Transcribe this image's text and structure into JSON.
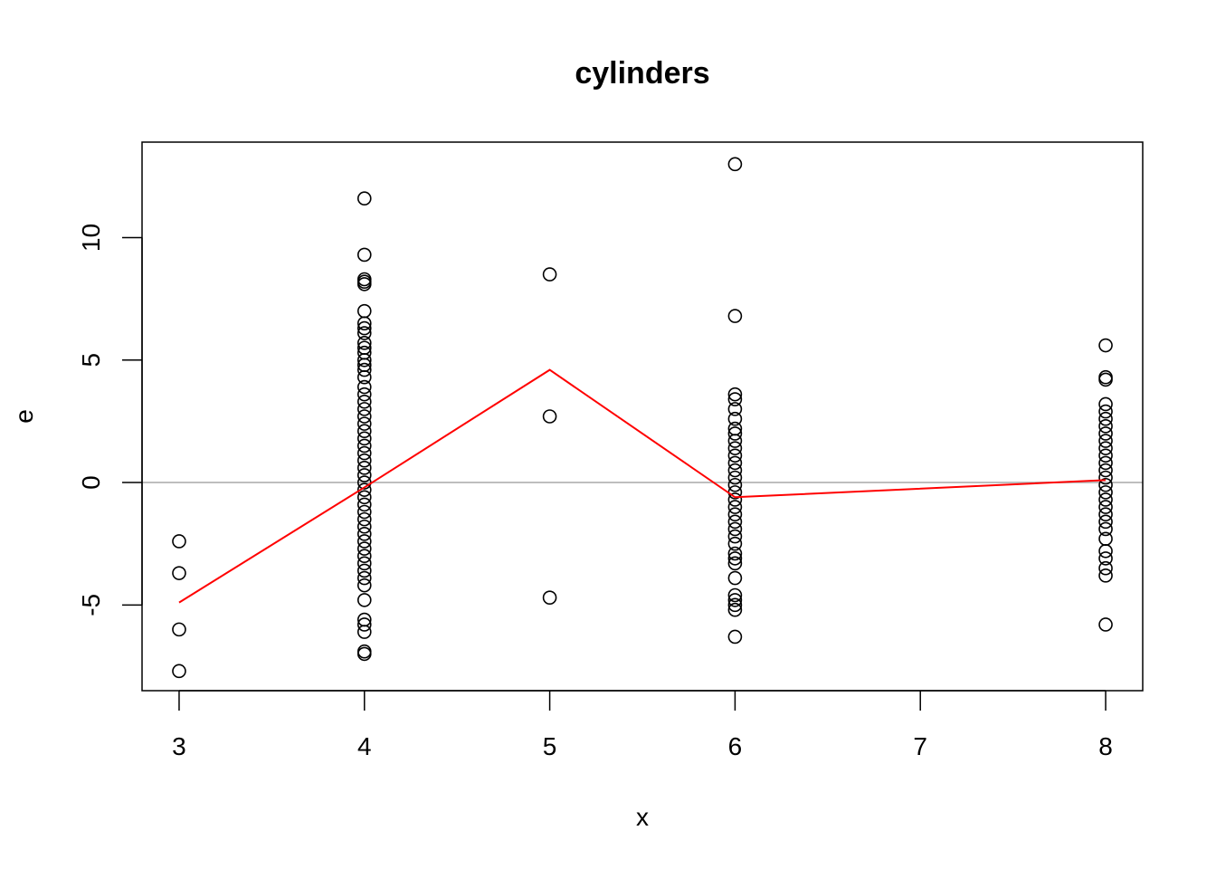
{
  "chart_data": {
    "type": "scatter",
    "title": "cylinders",
    "xlabel": "x",
    "ylabel": "e",
    "xlim": [
      2.8,
      8.2
    ],
    "ylim": [
      -8.5,
      13.9
    ],
    "x_ticks": [
      3,
      4,
      5,
      6,
      7,
      8
    ],
    "y_ticks": [
      -5,
      0,
      5,
      10
    ],
    "grid": false,
    "colors": {
      "points": "#000000",
      "smooth_line": "#ff0000",
      "reference_line": "#bebebe",
      "frame": "#000000"
    },
    "reference_line": {
      "y": 0
    },
    "series": [
      {
        "type": "scatter",
        "marker": "open-circle",
        "points": [
          [
            3,
            -2.4
          ],
          [
            3,
            -3.7
          ],
          [
            3,
            -6.0
          ],
          [
            3,
            -7.7
          ],
          [
            4,
            11.6
          ],
          [
            4,
            9.3
          ],
          [
            4,
            8.3
          ],
          [
            4,
            8.2
          ],
          [
            4,
            8.1
          ],
          [
            4,
            7.0
          ],
          [
            4,
            6.5
          ],
          [
            4,
            6.3
          ],
          [
            4,
            6.1
          ],
          [
            4,
            5.7
          ],
          [
            4,
            5.5
          ],
          [
            4,
            5.3
          ],
          [
            4,
            5.0
          ],
          [
            4,
            4.8
          ],
          [
            4,
            4.6
          ],
          [
            4,
            4.3
          ],
          [
            4,
            3.9
          ],
          [
            4,
            3.6
          ],
          [
            4,
            3.3
          ],
          [
            4,
            3.0
          ],
          [
            4,
            2.7
          ],
          [
            4,
            2.4
          ],
          [
            4,
            2.1
          ],
          [
            4,
            1.8
          ],
          [
            4,
            1.5
          ],
          [
            4,
            1.2
          ],
          [
            4,
            0.9
          ],
          [
            4,
            0.6
          ],
          [
            4,
            0.3
          ],
          [
            4,
            0.0
          ],
          [
            4,
            -0.3
          ],
          [
            4,
            -0.6
          ],
          [
            4,
            -0.9
          ],
          [
            4,
            -1.2
          ],
          [
            4,
            -1.5
          ],
          [
            4,
            -1.8
          ],
          [
            4,
            -2.1
          ],
          [
            4,
            -2.4
          ],
          [
            4,
            -2.7
          ],
          [
            4,
            -3.0
          ],
          [
            4,
            -3.3
          ],
          [
            4,
            -3.6
          ],
          [
            4,
            -3.9
          ],
          [
            4,
            -4.2
          ],
          [
            4,
            -4.8
          ],
          [
            4,
            -5.6
          ],
          [
            4,
            -5.8
          ],
          [
            4,
            -6.1
          ],
          [
            4,
            -6.9
          ],
          [
            4,
            -7.0
          ],
          [
            5,
            8.5
          ],
          [
            5,
            2.7
          ],
          [
            5,
            -4.7
          ],
          [
            6,
            13.0
          ],
          [
            6,
            6.8
          ],
          [
            6,
            3.6
          ],
          [
            6,
            3.4
          ],
          [
            6,
            3.0
          ],
          [
            6,
            2.6
          ],
          [
            6,
            2.2
          ],
          [
            6,
            2.0
          ],
          [
            6,
            1.7
          ],
          [
            6,
            1.4
          ],
          [
            6,
            1.1
          ],
          [
            6,
            0.8
          ],
          [
            6,
            0.5
          ],
          [
            6,
            0.2
          ],
          [
            6,
            -0.1
          ],
          [
            6,
            -0.4
          ],
          [
            6,
            -0.7
          ],
          [
            6,
            -1.0
          ],
          [
            6,
            -1.3
          ],
          [
            6,
            -1.6
          ],
          [
            6,
            -1.9
          ],
          [
            6,
            -2.2
          ],
          [
            6,
            -2.5
          ],
          [
            6,
            -2.9
          ],
          [
            6,
            -3.1
          ],
          [
            6,
            -3.3
          ],
          [
            6,
            -3.9
          ],
          [
            6,
            -4.6
          ],
          [
            6,
            -4.8
          ],
          [
            6,
            -5.0
          ],
          [
            6,
            -5.2
          ],
          [
            6,
            -6.3
          ],
          [
            8,
            5.6
          ],
          [
            8,
            4.3
          ],
          [
            8,
            4.2
          ],
          [
            8,
            3.2
          ],
          [
            8,
            2.9
          ],
          [
            8,
            2.6
          ],
          [
            8,
            2.3
          ],
          [
            8,
            2.0
          ],
          [
            8,
            1.7
          ],
          [
            8,
            1.4
          ],
          [
            8,
            1.1
          ],
          [
            8,
            0.8
          ],
          [
            8,
            0.5
          ],
          [
            8,
            0.2
          ],
          [
            8,
            -0.1
          ],
          [
            8,
            -0.4
          ],
          [
            8,
            -0.7
          ],
          [
            8,
            -1.0
          ],
          [
            8,
            -1.3
          ],
          [
            8,
            -1.6
          ],
          [
            8,
            -1.9
          ],
          [
            8,
            -2.3
          ],
          [
            8,
            -2.8
          ],
          [
            8,
            -3.1
          ],
          [
            8,
            -3.5
          ],
          [
            8,
            -3.8
          ],
          [
            8,
            -5.8
          ]
        ]
      },
      {
        "type": "line",
        "points": [
          [
            3,
            -4.9
          ],
          [
            4,
            -0.2
          ],
          [
            5,
            4.6
          ],
          [
            6,
            -0.6
          ],
          [
            8,
            0.1
          ]
        ]
      }
    ]
  }
}
